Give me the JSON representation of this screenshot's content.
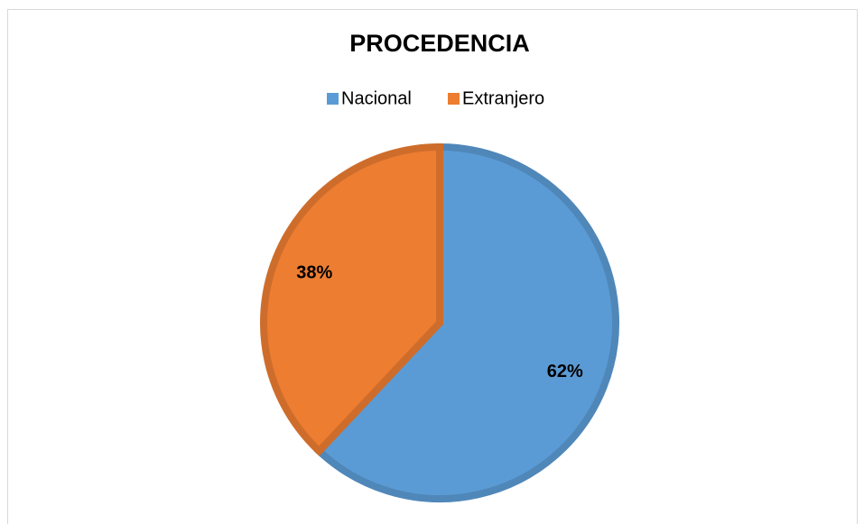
{
  "chart_data": {
    "type": "pie",
    "title": "PROCEDENCIA",
    "categories": [
      "Nacional",
      "Extranjero"
    ],
    "values": [
      62,
      38
    ],
    "value_labels": [
      "62%",
      "38%"
    ],
    "colors": [
      "#5b9bd5",
      "#ed7d31"
    ],
    "legend": "top"
  }
}
